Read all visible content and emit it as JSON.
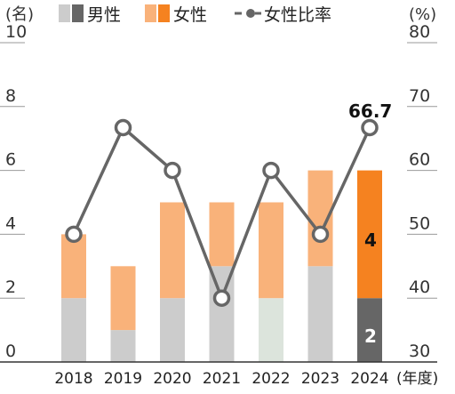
{
  "chart_data": {
    "type": "bar",
    "categories": [
      "2018",
      "2019",
      "2020",
      "2021",
      "2022",
      "2023",
      "2024"
    ],
    "series": [
      {
        "name": "男性",
        "values": [
          2,
          1,
          2,
          3,
          2,
          3,
          2
        ]
      },
      {
        "name": "女性",
        "values": [
          2,
          2,
          3,
          2,
          3,
          3,
          4
        ]
      }
    ],
    "line_series": {
      "name": "女性比率",
      "values": [
        50,
        66.7,
        60,
        40,
        60,
        50,
        66.7
      ],
      "axis": "right"
    },
    "left_axis": {
      "unit": "(名)",
      "ylim": [
        0,
        10
      ],
      "ticks": [
        "0",
        "2",
        "4",
        "6",
        "8",
        "10"
      ]
    },
    "right_axis": {
      "unit": "(%)",
      "ylim": [
        30,
        80
      ],
      "ticks": [
        "30",
        "40",
        "50",
        "60",
        "70",
        "80"
      ]
    },
    "x_unit": "(年度)",
    "legend": {
      "placement": "top"
    },
    "annotations": {
      "peak_label": "66.7",
      "male_2024": "2",
      "female_2024": "4"
    },
    "colors": {
      "male_past": "#cccccc",
      "male_2022": "#dce4dc",
      "male_current": "#666666",
      "female_past": "#f9b27a",
      "female_current": "#f58220",
      "line": "#666666",
      "axis": "#333333",
      "grid": "#999999"
    }
  }
}
